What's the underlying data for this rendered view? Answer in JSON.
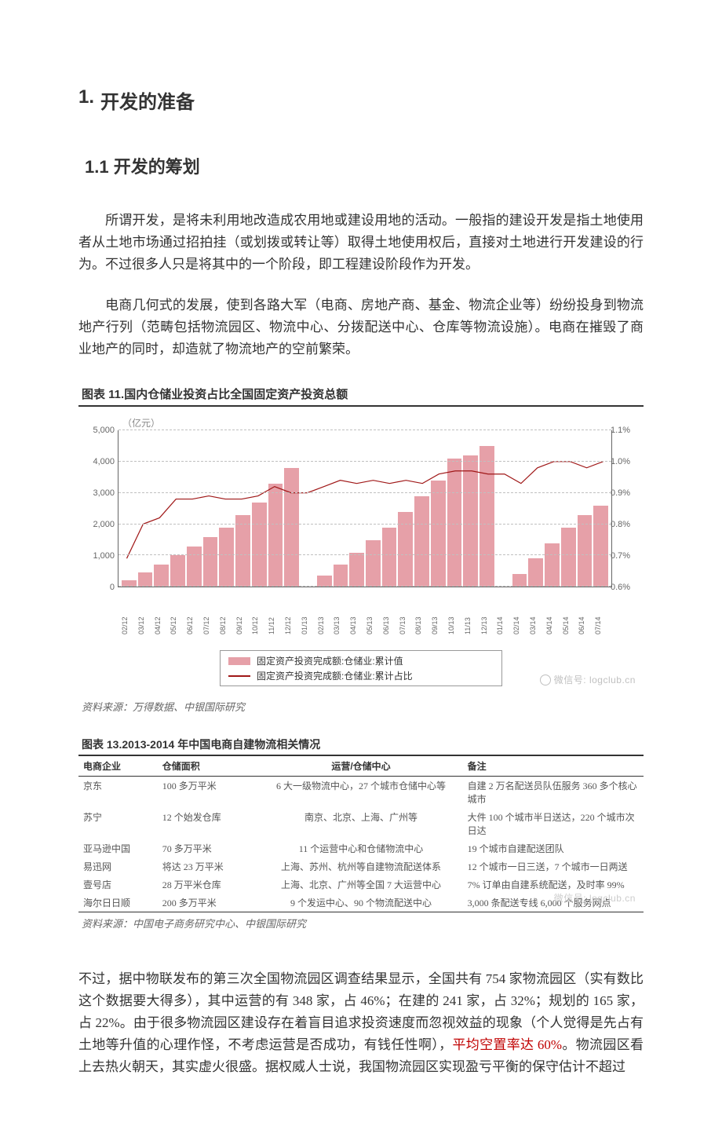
{
  "headings": {
    "h1_num": "1.",
    "h1_text": "开发的准备",
    "h2": "1.1 开发的筹划"
  },
  "paragraphs": {
    "p1": "所谓开发，是将未利用地改造成农用地或建设用地的活动。一般指的建设开发是指土地使用者从土地市场通过招拍挂（或划拨或转让等）取得土地使用权后，直接对土地进行开发建设的行为。不过很多人只是将其中的一个阶段，即工程建设阶段作为开发。",
    "p2": "电商几何式的发展，使到各路大军（电商、房地产商、基金、物流企业等）纷纷投身到物流地产行列（范畴包括物流园区、物流中心、分拨配送中心、仓库等物流设施）。电商在摧毁了商业地产的同时，却造就了物流地产的空前繁荣。",
    "p3_a": "不过，据中物联发布的第三次全国物流园区调查结果显示，全国共有 754 家物流园区（实有数比这个数据要大得多），其中运营的有 348 家，占 46%；在建的 241 家，占 32%；规划的 165 家，占 22%。由于很多物流园区建设存在着盲目追求投资速度而忽视效益的现象（个人觉得是先占有土地等升值的心理作怪，不考虑运营是否成功，有钱任性啊），",
    "p3_red": "平均空置率达 60%",
    "p3_b": "。物流园区看上去热火朝天，其实虚火很盛。据权威人士说，我国物流园区实现盈亏平衡的保守估计不超过"
  },
  "chart": {
    "title": "图表 11.国内仓储业投资占比全国固定资产投资总额",
    "unit": "（亿元）",
    "type": "bar_line_dual_axis",
    "source": "资料来源：万得数据、中银国际研究",
    "legend_bar": "固定资产投资完成额:仓储业:累计值",
    "legend_line": "固定资产投资完成额:仓储业:累计占比",
    "watermark": "微信号: logclub.cn",
    "y_left": {
      "min": 0,
      "max": 5000,
      "step": 1000,
      "labels": [
        "0",
        "1,000",
        "2,000",
        "3,000",
        "4,000",
        "5,000"
      ]
    },
    "y_right": {
      "min": 0.006,
      "max": 0.011,
      "labels": [
        "0.6%",
        "0.7%",
        "0.8%",
        "0.9%",
        "1.0%",
        "1.1%"
      ]
    },
    "x_labels": [
      "02/12",
      "03/12",
      "04/12",
      "05/12",
      "06/12",
      "07/12",
      "08/12",
      "09/12",
      "10/12",
      "11/12",
      "12/12",
      "01/13",
      "02/13",
      "03/13",
      "04/13",
      "05/13",
      "06/13",
      "07/13",
      "08/13",
      "09/13",
      "10/13",
      "11/13",
      "12/13",
      "01/14",
      "02/14",
      "03/14",
      "04/14",
      "05/14",
      "06/14",
      "07/14"
    ],
    "bar_values": [
      200,
      450,
      700,
      1000,
      1300,
      1600,
      1900,
      2300,
      2700,
      3300,
      3800,
      0,
      350,
      700,
      1100,
      1500,
      1900,
      2400,
      2900,
      3400,
      4100,
      4200,
      4500,
      0,
      400,
      900,
      1400,
      1900,
      2300,
      2600
    ],
    "line_values_pct": [
      0.69,
      0.8,
      0.82,
      0.88,
      0.88,
      0.89,
      0.88,
      0.88,
      0.89,
      0.92,
      0.9,
      0.9,
      0.92,
      0.94,
      0.93,
      0.94,
      0.93,
      0.94,
      0.93,
      0.96,
      0.97,
      0.97,
      0.96,
      0.96,
      0.93,
      0.98,
      1.0,
      1.0,
      0.98,
      1.0
    ],
    "colors": {
      "bar": "#e6a0a8",
      "line": "#a01818",
      "grid": "#c0c0c0",
      "axis": "#666666",
      "title_rule": "#333333",
      "watermark": "#c0c0c0"
    },
    "font_sizes": {
      "title": 15,
      "axis_label": 11,
      "legend": 12,
      "unit": 12
    }
  },
  "table": {
    "title": "图表 13.2013-2014 年中国电商自建物流相关情况",
    "type": "table",
    "source": "资料来源：中国电子商务研究中心、中银国际研究",
    "watermark": "微信号: logclub.cn",
    "columns": [
      "电商企业",
      "仓储面积",
      "运营/仓储中心",
      "备注"
    ],
    "col_widths": [
      "14%",
      "18%",
      "36%",
      "32%"
    ],
    "col_align": [
      "left",
      "left",
      "center",
      "left"
    ],
    "rows": [
      [
        "京东",
        "100 多万平米",
        "6 大一级物流中心，27 个城市仓储中心等",
        "自建 2 万名配送员队伍服务 360 多个核心城市"
      ],
      [
        "苏宁",
        "12 个始发仓库",
        "南京、北京、上海、广州等",
        "大件 100 个城市半日送达，220 个城市次日达"
      ],
      [
        "亚马逊中国",
        "70 多万平米",
        "11 个运营中心和仓储物流中心",
        "19 个城市自建配送团队"
      ],
      [
        "易迅网",
        "将达 23 万平米",
        "上海、苏州、杭州等自建物流配送体系",
        "12 个城市一日三送，7 个城市一日两送"
      ],
      [
        "壹号店",
        "28 万平米仓库",
        "上海、北京、广州等全国 7 大运营中心",
        "7% 订单由自建系统配送，及时率 99%"
      ],
      [
        "海尔日日顺",
        "200 多万平米",
        "9 个发运中心、90 个物流配送中心",
        "3,000 条配送专线 6,000 个服务网点"
      ]
    ],
    "colors": {
      "rule": "#333333",
      "text": "#555555",
      "header_text": "#333333"
    },
    "font_sizes": {
      "title": 14,
      "header": 12,
      "cell": 12
    }
  }
}
